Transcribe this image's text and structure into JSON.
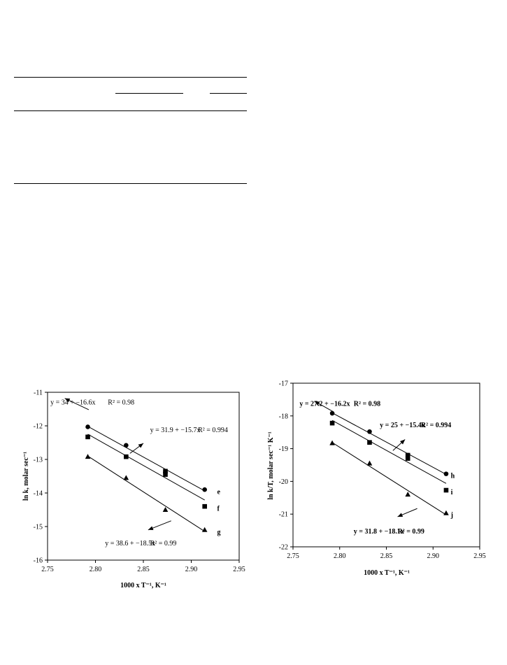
{
  "chart_data": [
    {
      "type": "scatter",
      "title": "",
      "xlabel": "1000 x T⁻¹, K⁻¹",
      "ylabel": "ln k, molar sec⁻¹",
      "xlim": [
        2.75,
        2.95
      ],
      "ylim": [
        -16,
        -11
      ],
      "xticks": [
        "2.75",
        "2.80",
        "2.85",
        "2.90",
        "2.95"
      ],
      "yticks": [
        "-11",
        "-12",
        "-13",
        "-14",
        "-15",
        "-16"
      ],
      "series": [
        {
          "name": "e",
          "marker": "circle",
          "x": [
            2.792,
            2.832,
            2.873,
            2.914
          ],
          "y": [
            -12.03,
            -12.58,
            -13.38,
            -13.9
          ],
          "fit": {
            "equation": "y = 31.9 + −15.7x",
            "r2": "R² = 0.994"
          }
        },
        {
          "name": "f",
          "marker": "square",
          "x": [
            2.792,
            2.832,
            2.873,
            2.873,
            2.914
          ],
          "y": [
            -12.33,
            -12.92,
            -13.35,
            -13.45,
            -14.4
          ],
          "fit": {
            "equation": "y = 34 + −16.6x",
            "r2": "R² = 0.98"
          }
        },
        {
          "name": "g",
          "marker": "triangle",
          "x": [
            2.792,
            2.832,
            2.873,
            2.914
          ],
          "y": [
            -12.92,
            -13.55,
            -14.5,
            -15.1
          ],
          "fit": {
            "equation": "y = 38.6 + −18.5x",
            "r2": "R² = 0.99"
          }
        }
      ]
    },
    {
      "type": "scatter",
      "title": "",
      "xlabel": "1000 x T⁻¹, K⁻¹",
      "ylabel": "ln k/T, molar sec⁻¹ K⁻¹",
      "xlim": [
        2.75,
        2.95
      ],
      "ylim": [
        -22,
        -17
      ],
      "xticks": [
        "2.75",
        "2.80",
        "2.85",
        "2.90",
        "2.95"
      ],
      "yticks": [
        "-17",
        "-18",
        "-19",
        "-20",
        "-21",
        "-22"
      ],
      "series": [
        {
          "name": "h",
          "marker": "circle",
          "x": [
            2.792,
            2.832,
            2.873,
            2.914
          ],
          "y": [
            -17.92,
            -18.48,
            -19.2,
            -19.77
          ],
          "fit": {
            "equation": "y = 25 + −15.4x",
            "r2": "R² = 0.994"
          }
        },
        {
          "name": "i",
          "marker": "square",
          "x": [
            2.792,
            2.832,
            2.873,
            2.873,
            2.914
          ],
          "y": [
            -18.22,
            -18.81,
            -19.2,
            -19.3,
            -20.27
          ],
          "fit": {
            "equation": "y = 27.2 + −16.2x",
            "r2": "R² = 0.98"
          }
        },
        {
          "name": "j",
          "marker": "triangle",
          "x": [
            2.792,
            2.832,
            2.873,
            2.914
          ],
          "y": [
            -18.83,
            -19.45,
            -20.4,
            -20.97
          ],
          "fit": {
            "equation": "y = 31.8 + −18.1x",
            "r2": "R² = 0.99"
          }
        }
      ]
    }
  ]
}
